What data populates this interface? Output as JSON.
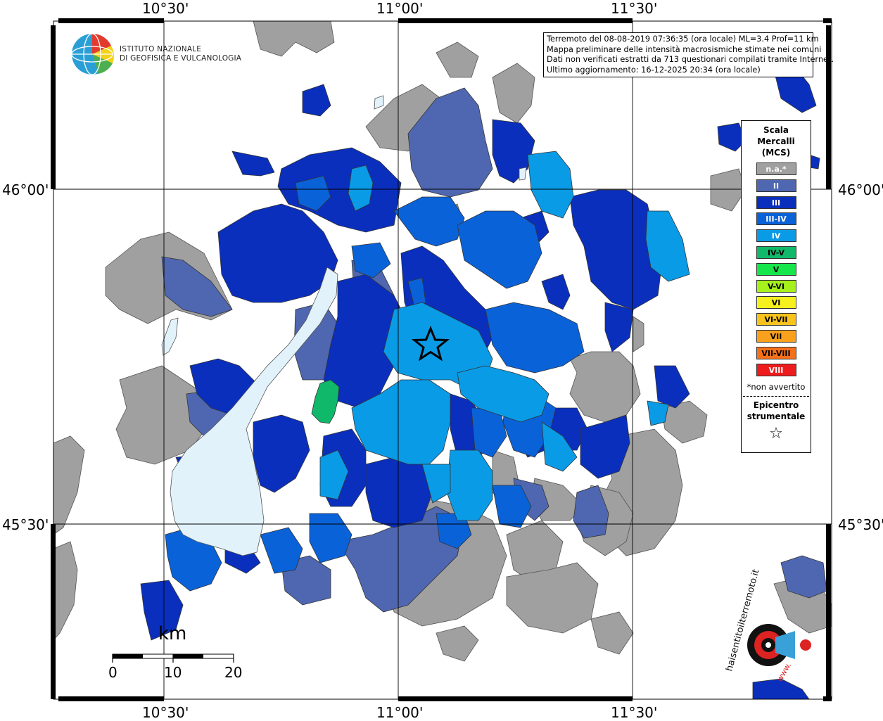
{
  "map": {
    "coord_labels": {
      "top": [
        "10°30'",
        "11°00'",
        "11°30'"
      ],
      "bottom": [
        "10°30'",
        "11°00'",
        "11°30'"
      ],
      "left": [
        "46°00'",
        "45°30'"
      ],
      "right": [
        "46°00'",
        "45°30'"
      ]
    },
    "colors": {
      "na": "#a0a0a0",
      "II": "#4f67b0",
      "III": "#0a2fbd",
      "III_IV": "#0a62d8",
      "IV": "#0a9be6",
      "IV_V": "#10b86a",
      "lake": "#e2f2fb",
      "grid": "#000000"
    }
  },
  "logo": {
    "line1": "ISTITUTO NAZIONALE",
    "line2": "DI GEOFISICA E VULCANOLOGIA"
  },
  "info": {
    "line1": "Terremoto del 08-08-2019 07:36:35 (ora locale) ML=3.4 Prof=11 km",
    "line2": "Mappa preliminare delle intensità macrosismiche stimate nei comuni",
    "line3": "Dati non verificati estratti da 713 questionari compilati tramite Internet.",
    "line4": "Ultimo aggiornamento: 16-12-2025 20:34 (ora locale)"
  },
  "legend": {
    "title_line1": "Scala",
    "title_line2": "Mercalli",
    "title_line3": "(MCS)",
    "items": [
      {
        "label": "n.a.*",
        "color": "#a0a0a0",
        "text_color": "#ffffff"
      },
      {
        "label": "II",
        "color": "#4f67b0",
        "text_color": "#ffffff"
      },
      {
        "label": "III",
        "color": "#0a2fbd",
        "text_color": "#ffffff"
      },
      {
        "label": "III-IV",
        "color": "#0a62d8",
        "text_color": "#ffffff"
      },
      {
        "label": "IV",
        "color": "#0a9be6",
        "text_color": "#ffffff"
      },
      {
        "label": "IV-V",
        "color": "#10b86a",
        "text_color": "#000000"
      },
      {
        "label": "V",
        "color": "#14e64c",
        "text_color": "#000000"
      },
      {
        "label": "V-VI",
        "color": "#a6f01c",
        "text_color": "#000000"
      },
      {
        "label": "VI",
        "color": "#f6f01e",
        "text_color": "#000000"
      },
      {
        "label": "VI-VII",
        "color": "#f8c31c",
        "text_color": "#000000"
      },
      {
        "label": "VII",
        "color": "#f9a11c",
        "text_color": "#000000"
      },
      {
        "label": "VII-VIII",
        "color": "#f6701a",
        "text_color": "#000000"
      },
      {
        "label": "VIII",
        "color": "#ee1c1c",
        "text_color": "#ffffff"
      }
    ],
    "note": "*non avvertito",
    "epicenter_line1": "Epicentro",
    "epicenter_line2": "strumentale",
    "star": "☆"
  },
  "scale_bar": {
    "unit": "km",
    "labels": [
      "0",
      "10",
      "20"
    ]
  },
  "badge": {
    "text": "haisentitoilterremoto.it",
    "url": "www."
  }
}
